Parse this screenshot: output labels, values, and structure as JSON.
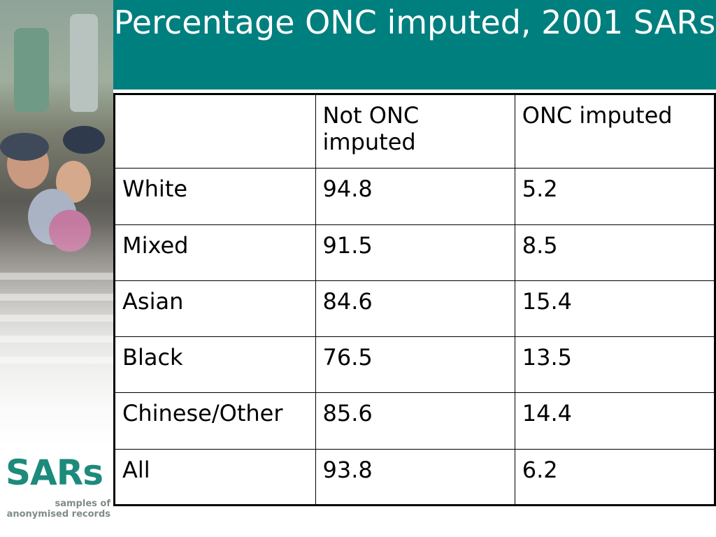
{
  "slide": {
    "title": "Percentage ONC imputed, 2001 SARs",
    "accent_color": "#007f7f"
  },
  "table": {
    "headers": [
      "",
      "Not ONC imputed",
      "ONC imputed"
    ],
    "rows": [
      [
        "White",
        "94.8",
        "5.2"
      ],
      [
        "Mixed",
        "91.5",
        "8.5"
      ],
      [
        "Asian",
        "84.6",
        "15.4"
      ],
      [
        "Black",
        "76.5",
        "13.5"
      ],
      [
        "Chinese/Other",
        "85.6",
        "14.4"
      ],
      [
        "All",
        "93.8",
        "6.2"
      ]
    ]
  },
  "logo": {
    "wordmark": "SARs",
    "tagline_line1": "samples of",
    "tagline_line2": "anonymised records",
    "color": "#1d8a7c"
  },
  "chart_data": {
    "type": "table",
    "title": "Percentage ONC imputed, 2001 SARs",
    "columns": [
      "",
      "Not ONC imputed",
      "ONC imputed"
    ],
    "rows": [
      {
        "label": "White",
        "values": [
          94.8,
          5.2
        ]
      },
      {
        "label": "Mixed",
        "values": [
          91.5,
          8.5
        ]
      },
      {
        "label": "Asian",
        "values": [
          84.6,
          15.4
        ]
      },
      {
        "label": "Black",
        "values": [
          76.5,
          13.5
        ]
      },
      {
        "label": "Chinese/Other",
        "values": [
          85.6,
          14.4
        ]
      },
      {
        "label": "All",
        "values": [
          93.8,
          6.2
        ]
      }
    ]
  }
}
